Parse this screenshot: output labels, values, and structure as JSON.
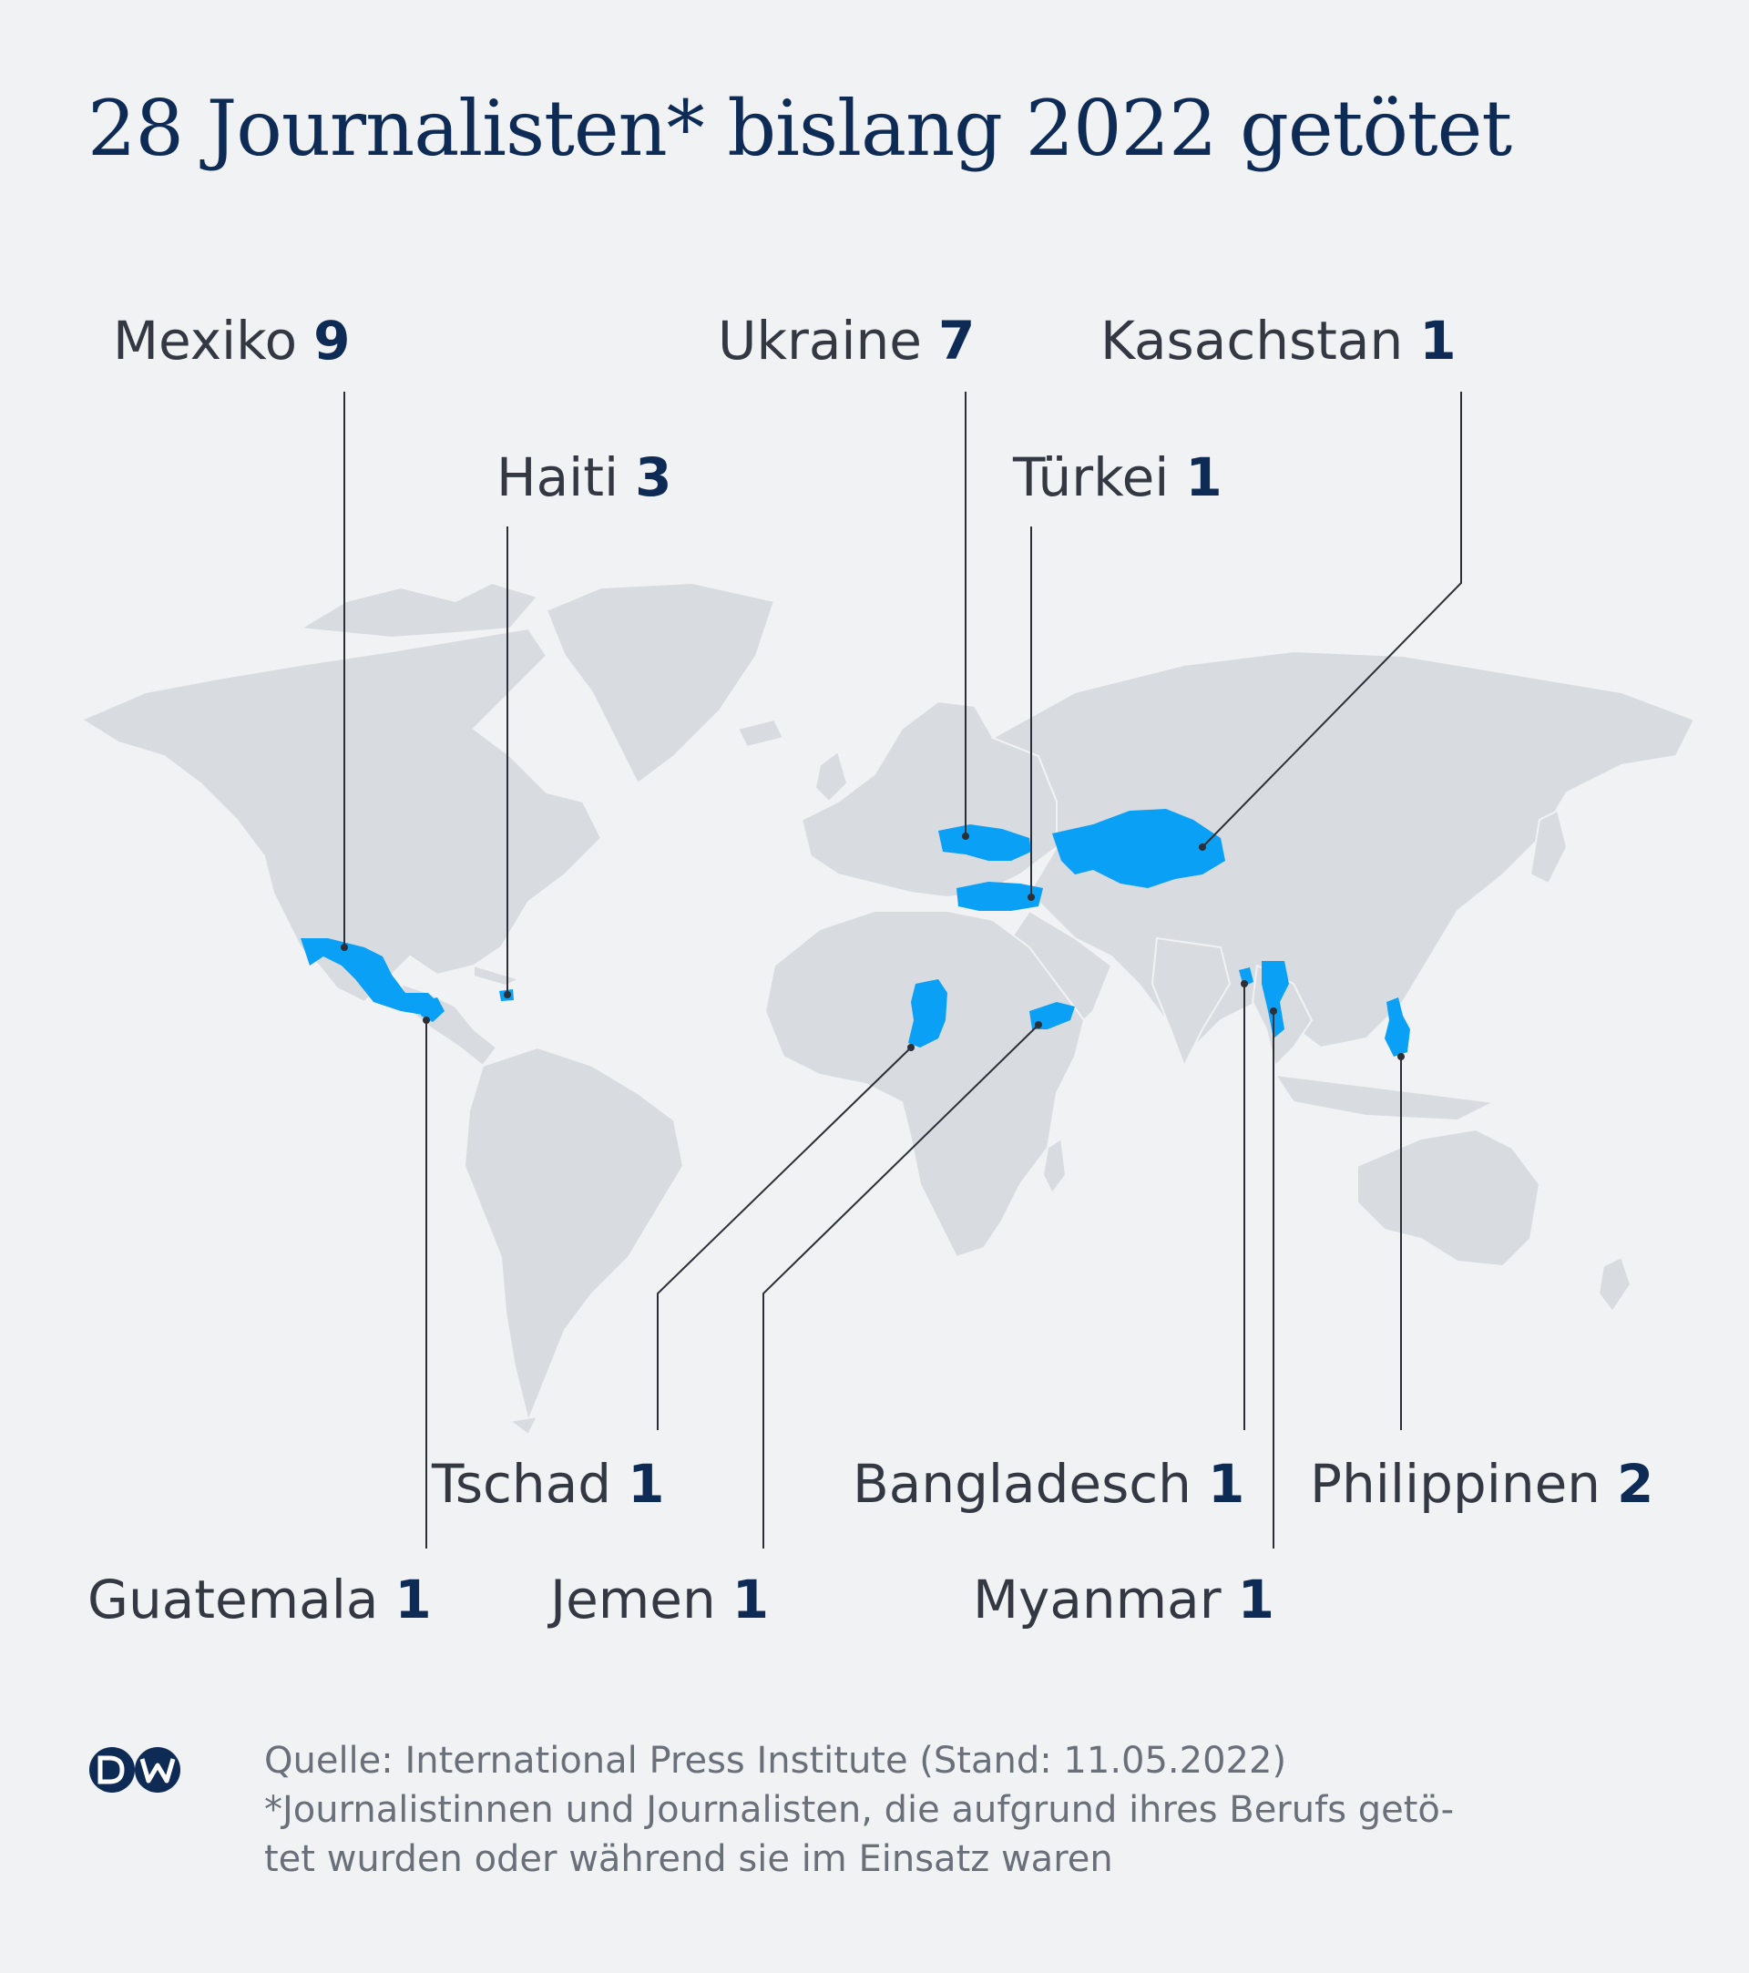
{
  "title": "28 Journalisten* bislang 2022 getötet",
  "colors": {
    "highlight": "#0aa0f5",
    "land": "#d8dbe0",
    "title": "#0d2b55",
    "leader": "#2b2f36"
  },
  "countries": [
    {
      "id": "mexiko",
      "name": "Mexiko",
      "count": "9"
    },
    {
      "id": "haiti",
      "name": "Haiti",
      "count": "3"
    },
    {
      "id": "ukraine",
      "name": "Ukraine",
      "count": "7"
    },
    {
      "id": "tuerkei",
      "name": "Türkei",
      "count": "1"
    },
    {
      "id": "kasachstan",
      "name": "Kasachstan",
      "count": "1"
    },
    {
      "id": "tschad",
      "name": "Tschad",
      "count": "1"
    },
    {
      "id": "jemen",
      "name": "Jemen",
      "count": "1"
    },
    {
      "id": "guatemala",
      "name": "Guatemala",
      "count": "1"
    },
    {
      "id": "bangladesch",
      "name": "Bangladesch",
      "count": "1"
    },
    {
      "id": "myanmar",
      "name": "Myanmar",
      "count": "1"
    },
    {
      "id": "philippinen",
      "name": "Philippinen",
      "count": "2"
    }
  ],
  "logo": {
    "icon": "dw-logo-icon",
    "text": "DW"
  },
  "footer": {
    "source": "Quelle: International Press Institute (Stand: 11.05.2022)",
    "note_line1": "*Journalistinnen und Journalisten, die aufgrund ihres Berufs getö-",
    "note_line2": "tet wurden oder während sie im Einsatz waren"
  }
}
